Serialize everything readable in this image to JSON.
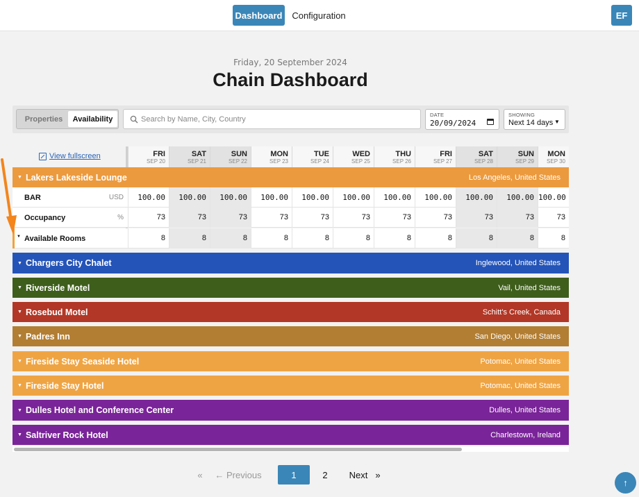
{
  "nav": {
    "dashboard": "Dashboard",
    "configuration": "Configuration",
    "avatar": "EF"
  },
  "header": {
    "date": "Friday, 20 September 2024",
    "title": "Chain Dashboard"
  },
  "toolbar": {
    "seg_properties": "Properties",
    "seg_availability": "Availability",
    "search_placeholder": "Search by Name, City, Country",
    "date_label": "DATE",
    "date_value": "20/09/2024",
    "showing_label": "SHOWING",
    "showing_value": "Next 14 days"
  },
  "grid": {
    "fullscreen_link": "View fullscreen",
    "columns": [
      {
        "day": "FRI",
        "date": "SEP 20"
      },
      {
        "day": "SAT",
        "date": "SEP 21"
      },
      {
        "day": "SUN",
        "date": "SEP 22"
      },
      {
        "day": "MON",
        "date": "SEP 23"
      },
      {
        "day": "TUE",
        "date": "SEP 24"
      },
      {
        "day": "WED",
        "date": "SEP 25"
      },
      {
        "day": "THU",
        "date": "SEP 26"
      },
      {
        "day": "FRI",
        "date": "SEP 27"
      },
      {
        "day": "SAT",
        "date": "SEP 28"
      },
      {
        "day": "SUN",
        "date": "SEP 29"
      },
      {
        "day": "MON",
        "date": "SEP 30"
      }
    ],
    "metrics": [
      {
        "label": "BAR",
        "unit": "USD",
        "values": [
          "100.00",
          "100.00",
          "100.00",
          "100.00",
          "100.00",
          "100.00",
          "100.00",
          "100.00",
          "100.00",
          "100.00",
          "100.00"
        ]
      },
      {
        "label": "Occupancy",
        "unit": "%",
        "values": [
          "73",
          "73",
          "73",
          "73",
          "73",
          "73",
          "73",
          "73",
          "73",
          "73",
          "73"
        ]
      },
      {
        "label": "Available Rooms",
        "unit": "",
        "values": [
          "8",
          "8",
          "8",
          "8",
          "8",
          "8",
          "8",
          "8",
          "8",
          "8",
          "8"
        ]
      }
    ]
  },
  "properties": [
    {
      "name": "Lakers Lakeside Lounge",
      "location": "Los Angeles, United States",
      "color": "#ec9a3e"
    },
    {
      "name": "Chargers City Chalet",
      "location": "Inglewood, United States",
      "color": "#2454b8"
    },
    {
      "name": "Riverside Motel",
      "location": "Vail, United States",
      "color": "#3e5e1c"
    },
    {
      "name": "Rosebud Motel",
      "location": "Schitt's Creek, Canada",
      "color": "#b23726"
    },
    {
      "name": "Padres Inn",
      "location": "San Diego, United States",
      "color": "#b27e33"
    },
    {
      "name": "Fireside Stay Seaside Hotel",
      "location": "Potomac, United States",
      "color": "#efa443"
    },
    {
      "name": "Fireside Stay Hotel",
      "location": "Potomac, United States",
      "color": "#efa443"
    },
    {
      "name": "Dulles Hotel and Conference Center",
      "location": "Dulles, United States",
      "color": "#7a2499"
    },
    {
      "name": "Saltriver Rock Hotel",
      "location": "Charlestown, Ireland",
      "color": "#7a2499"
    }
  ],
  "pagination": {
    "first": "«",
    "previous": "← Previous",
    "page1": "1",
    "page2": "2",
    "next": "Next",
    "last": "»"
  },
  "icons": {
    "search": "search-icon",
    "calendar": "calendar-icon",
    "fullscreen": "fullscreen-icon",
    "scroll_top": "arrow-up-icon",
    "annotation": "orange-arrow"
  }
}
